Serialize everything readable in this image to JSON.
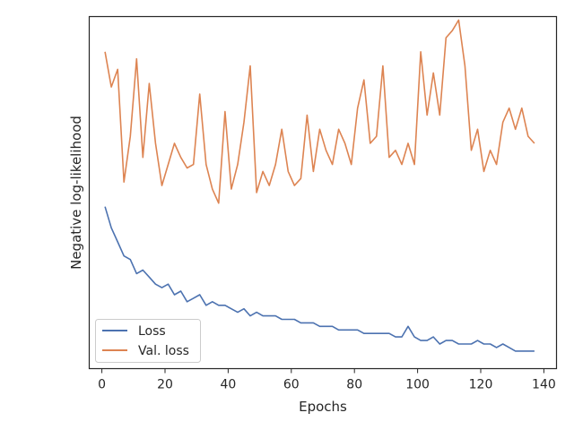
{
  "chart_data": {
    "type": "line",
    "xlabel": "Epochs",
    "ylabel": "Negative log-likelihood",
    "xlim": [
      -4,
      144
    ],
    "ylim": [
      0,
      100
    ],
    "xticks": [
      0,
      20,
      40,
      60,
      80,
      100,
      120,
      140
    ],
    "y_tick_labels_shown": false,
    "grid": false,
    "legend": "lower-left",
    "series": [
      {
        "name": "Loss",
        "color": "#4c72b0",
        "x": [
          1,
          3,
          5,
          7,
          9,
          11,
          13,
          15,
          17,
          19,
          21,
          23,
          25,
          27,
          29,
          31,
          33,
          35,
          37,
          39,
          41,
          43,
          45,
          47,
          49,
          51,
          53,
          55,
          57,
          59,
          61,
          63,
          65,
          67,
          69,
          71,
          73,
          75,
          77,
          79,
          81,
          83,
          85,
          87,
          89,
          91,
          93,
          95,
          97,
          99,
          101,
          103,
          105,
          107,
          109,
          111,
          113,
          115,
          117,
          119,
          121,
          123,
          125,
          127,
          129,
          131,
          133,
          135,
          137
        ],
        "values": [
          46,
          40,
          36,
          32,
          31,
          27,
          28,
          26,
          24,
          23,
          24,
          21,
          22,
          19,
          20,
          21,
          18,
          19,
          18,
          18,
          17,
          16,
          17,
          15,
          16,
          15,
          15,
          15,
          14,
          14,
          14,
          13,
          13,
          13,
          12,
          12,
          12,
          11,
          11,
          11,
          11,
          10,
          10,
          10,
          10,
          10,
          9,
          9,
          12,
          9,
          8,
          8,
          9,
          7,
          8,
          8,
          7,
          7,
          7,
          8,
          7,
          7,
          6,
          7,
          6,
          5,
          5,
          5,
          5
        ]
      },
      {
        "name": "Val. loss",
        "color": "#dd8452",
        "x": [
          1,
          3,
          5,
          7,
          9,
          11,
          13,
          15,
          17,
          19,
          21,
          23,
          25,
          27,
          29,
          31,
          33,
          35,
          37,
          39,
          41,
          43,
          45,
          47,
          49,
          51,
          53,
          55,
          57,
          59,
          61,
          63,
          65,
          67,
          69,
          71,
          73,
          75,
          77,
          79,
          81,
          83,
          85,
          87,
          89,
          91,
          93,
          95,
          97,
          99,
          101,
          103,
          105,
          107,
          109,
          111,
          113,
          115,
          117,
          119,
          121,
          123,
          125,
          127,
          129,
          131,
          133,
          135,
          137
        ],
        "values": [
          90,
          80,
          85,
          53,
          66,
          88,
          60,
          81,
          64,
          52,
          58,
          64,
          60,
          57,
          58,
          78,
          58,
          51,
          47,
          73,
          51,
          58,
          70,
          86,
          50,
          56,
          52,
          58,
          68,
          56,
          52,
          54,
          72,
          56,
          68,
          62,
          58,
          68,
          64,
          58,
          74,
          82,
          64,
          66,
          86,
          60,
          62,
          58,
          64,
          58,
          90,
          72,
          84,
          72,
          94,
          96,
          99,
          86,
          62,
          68,
          56,
          62,
          58,
          70,
          74,
          68,
          74,
          66,
          64
        ],
        "notes": ""
      }
    ]
  }
}
